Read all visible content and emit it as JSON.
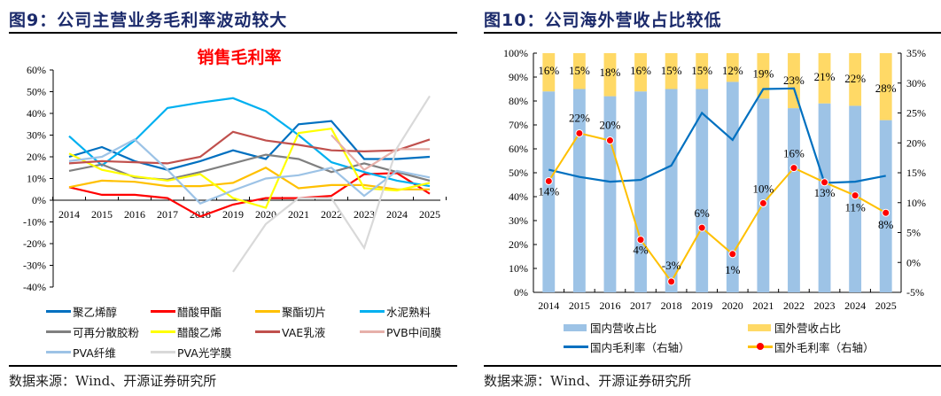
{
  "figures": [
    {
      "title": "图9：公司主营业务毛利率波动较大",
      "source": "数据来源：Wind、开源证券研究所"
    },
    {
      "title": "图10：公司海外营收占比较低",
      "source": "数据来源：Wind、开源证券研究所"
    }
  ],
  "chart_data": [
    {
      "type": "line",
      "title": "销售毛利率",
      "title_color": "#ff0000",
      "xlabel": "",
      "ylabel": "",
      "x": [
        "2014",
        "2015",
        "2016",
        "2017",
        "2018",
        "2019",
        "2020",
        "2021",
        "2022",
        "2023",
        "2024",
        "2025"
      ],
      "ylim": [
        -40,
        60
      ],
      "yticks": [
        "-40%",
        "-30%",
        "-20%",
        "-10%",
        "0%",
        "10%",
        "20%",
        "30%",
        "40%",
        "50%",
        "60%"
      ],
      "ytick_values": [
        -40,
        -30,
        -20,
        -10,
        0,
        10,
        20,
        30,
        40,
        50,
        60
      ],
      "grid": false,
      "legend_position": "bottom",
      "series": [
        {
          "name": "聚乙烯醇",
          "color": "#0070c0",
          "values": [
            20,
            24.5,
            18,
            14,
            18,
            23,
            19,
            35,
            36.5,
            19,
            19,
            20
          ]
        },
        {
          "name": "醋酸甲酯",
          "color": "#ff0000",
          "values": [
            6,
            2.5,
            2.5,
            1,
            -7.5,
            -2,
            1,
            1,
            2,
            12,
            12.5,
            3
          ]
        },
        {
          "name": "聚酯切片",
          "color": "#ffc000",
          "values": [
            6,
            9,
            8.5,
            6.5,
            6.5,
            8,
            15,
            5.5,
            7,
            7,
            5,
            5
          ]
        },
        {
          "name": "水泥熟料",
          "color": "#00b0f0",
          "values": [
            29.5,
            16,
            27.5,
            42.5,
            45,
            47,
            41,
            30,
            17.5,
            13,
            9,
            6.5
          ]
        },
        {
          "name": "可再分散胶粉",
          "color": "#808080",
          "values": [
            13.5,
            16.5,
            10.5,
            9.5,
            13,
            17,
            21,
            19,
            13,
            17,
            13,
            9
          ]
        },
        {
          "name": "醋酸乙烯",
          "color": "#ffff00",
          "values": [
            21.5,
            14,
            11,
            9,
            12,
            1,
            -3.5,
            31,
            33,
            5.5,
            4.5,
            8
          ]
        },
        {
          "name": "VAE乳液",
          "color": "#c0504d",
          "values": [
            17,
            18,
            17.5,
            17,
            20,
            31.5,
            27.5,
            25.5,
            23,
            22.5,
            23,
            28
          ]
        },
        {
          "name": "PVB中间膜",
          "color": "#e6b0aa",
          "values": [
            null,
            null,
            null,
            null,
            null,
            null,
            null,
            null,
            30,
            14,
            23.5,
            23.5
          ]
        },
        {
          "name": "PVA纤维",
          "color": "#9dc3e6",
          "values": [
            18,
            20,
            28,
            14,
            -1.5,
            4.5,
            10,
            11.5,
            15,
            2,
            13.5,
            10.5
          ]
        },
        {
          "name": "PVA光学膜",
          "color": "#d9d9d9",
          "values": [
            null,
            null,
            null,
            null,
            null,
            -33,
            -11,
            1,
            1,
            -22,
            24,
            48
          ]
        }
      ]
    },
    {
      "type": "bar",
      "title": "",
      "xlabel": "",
      "ylabel": "",
      "categories": [
        "2014",
        "2015",
        "2016",
        "2017",
        "2018",
        "2019",
        "2020",
        "2021",
        "2022",
        "2023",
        "2024",
        "2025"
      ],
      "ylim": [
        0,
        100
      ],
      "yticks": [
        "0%",
        "10%",
        "20%",
        "30%",
        "40%",
        "50%",
        "60%",
        "70%",
        "80%",
        "90%",
        "100%"
      ],
      "ytick_values": [
        0,
        10,
        20,
        30,
        40,
        50,
        60,
        70,
        80,
        90,
        100
      ],
      "y2lim": [
        -5,
        35
      ],
      "y2ticks": [
        "-5%",
        "0%",
        "5%",
        "10%",
        "15%",
        "20%",
        "25%",
        "30%",
        "35%"
      ],
      "y2tick_values": [
        -5,
        0,
        5,
        10,
        15,
        20,
        25,
        30,
        35
      ],
      "grid": false,
      "legend_position": "bottom",
      "stacked": true,
      "series": [
        {
          "name": "国内营收占比",
          "kind": "bar",
          "axis": "left",
          "color": "#9dc3e6",
          "values": [
            84,
            85,
            82,
            84,
            85,
            85,
            88,
            81,
            77,
            79,
            78,
            72
          ]
        },
        {
          "name": "国外营收占比",
          "kind": "bar",
          "axis": "left",
          "color": "#ffd966",
          "values": [
            16,
            15,
            18,
            16,
            15,
            15,
            12,
            19,
            23,
            21,
            22,
            28
          ],
          "labels": [
            "16%",
            "15%",
            "18%",
            "16%",
            "15%",
            "15%",
            "12%",
            "19%",
            "23%",
            "21%",
            "22%",
            "28%"
          ]
        },
        {
          "name": "国内毛利率（右轴）",
          "kind": "line",
          "axis": "right",
          "color": "#0070c0",
          "values": [
            15.5,
            14.3,
            13.5,
            13.8,
            16.2,
            25,
            20.5,
            29,
            29.1,
            13.3,
            13.5,
            14.5
          ]
        },
        {
          "name": "国外毛利率（右轴）",
          "kind": "line-marker",
          "axis": "right",
          "color": "#ffc000",
          "marker_color": "#ff0000",
          "values": [
            13.6,
            21.6,
            20.4,
            3.8,
            -3.2,
            5.8,
            1.4,
            9.9,
            15.8,
            13.4,
            11.2,
            8.3
          ],
          "labels": [
            "14%",
            "22%",
            "20%",
            "4%",
            "-3%",
            "6%",
            "1%",
            "10%",
            "16%",
            "13%",
            "11%",
            "8%"
          ]
        }
      ]
    }
  ]
}
